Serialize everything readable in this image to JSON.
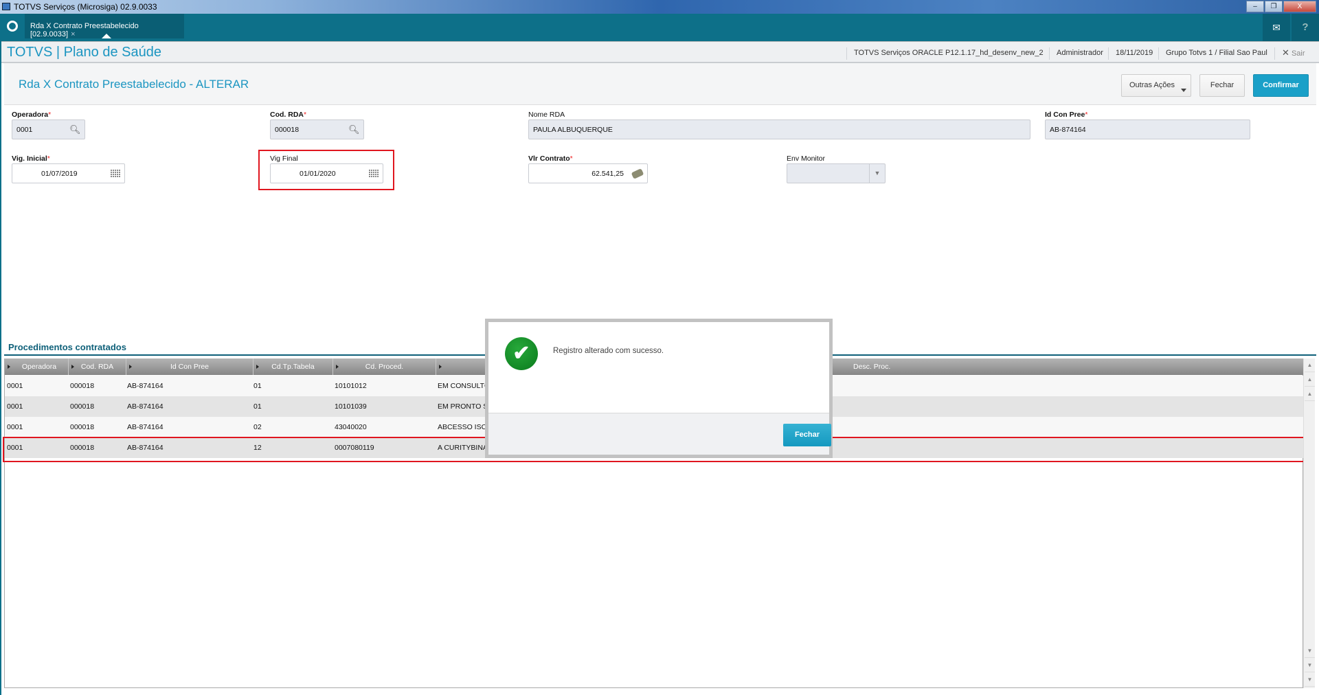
{
  "window": {
    "title": "TOTVS Serviços (Microsiga) 02.9.0033",
    "minimize": "–",
    "restore": "❐",
    "close": "X"
  },
  "tabbar": {
    "tab_label": "Rda X Contrato Preestabelecido [02.9.0033]",
    "tab_close": "×",
    "mail_icon": "mail-icon",
    "help_icon": "help-icon"
  },
  "header": {
    "brand": "TOTVS | Plano de Saúde",
    "environment": "TOTVS Serviços ORACLE P12.1.17_hd_desenv_new_2",
    "user": "Administrador",
    "date": "18/11/2019",
    "branch": "Grupo Totvs 1 / Filial Sao Paul",
    "exit": "Sair"
  },
  "page": {
    "title": "Rda X Contrato Preestabelecido - ALTERAR",
    "actions": {
      "other": "Outras Ações",
      "close": "Fechar",
      "confirm": "Confirmar"
    }
  },
  "form": {
    "operadora": {
      "label": "Operadora",
      "value": "0001"
    },
    "cod_rda": {
      "label": "Cod. RDA",
      "value": "000018"
    },
    "nome_rda": {
      "label": "Nome RDA",
      "value": "PAULA ALBUQUERQUE"
    },
    "id_con_pree": {
      "label": "Id Con Pree",
      "value": "AB-874164"
    },
    "vig_inicial": {
      "label": "Vig. Inicial",
      "value": "01/07/2019"
    },
    "vig_final": {
      "label": "Vig Final",
      "value": "01/01/2020"
    },
    "vlr_contrato": {
      "label": "Vlr Contrato",
      "value": "62.541,25"
    },
    "env_monitor": {
      "label": "Env Monitor",
      "value": ""
    },
    "required_mark": "*"
  },
  "grid": {
    "title": "Procedimentos contratados",
    "columns": [
      "Operadora",
      "Cod. RDA",
      "Id Con Pree",
      "Cd.Tp.Tabela",
      "Cd. Proced.",
      "",
      "Desc. Proc."
    ],
    "rows": [
      [
        "0001",
        "000018",
        "AB-874164",
        "01",
        "10101012",
        "EM CONSULTC"
      ],
      [
        "0001",
        "000018",
        "AB-874164",
        "01",
        "10101039",
        "EM PRONTO S"
      ],
      [
        "0001",
        "000018",
        "AB-874164",
        "02",
        "43040020",
        "ABCESSO ISC"
      ],
      [
        "0001",
        "000018",
        "AB-874164",
        "12",
        "0007080119",
        "A CURITYBINA"
      ]
    ],
    "highlighted_row": 4
  },
  "dialog": {
    "message": "Registro alterado com sucesso.",
    "button": "Fechar",
    "icon": "success-check-icon",
    "success_color": "#15952a"
  },
  "colors": {
    "brand": "#1b95c1",
    "tabbar": "#0d7089",
    "highlight": "#e0161f"
  }
}
